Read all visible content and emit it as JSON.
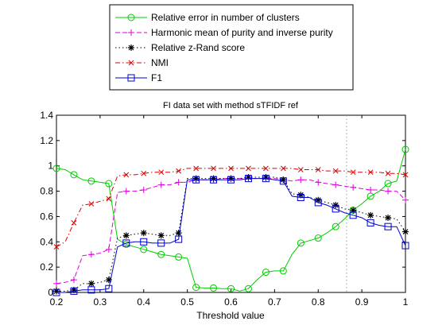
{
  "chart_data": {
    "type": "line",
    "title": "FI data set with method sTFIDF ref",
    "xlabel": "Threshold value",
    "ylabel": "",
    "xlim": [
      0.2,
      1.0
    ],
    "ylim": [
      0,
      1.4
    ],
    "xticks": [
      "0.2",
      "0.3",
      "0.4",
      "0.5",
      "0.6",
      "0.7",
      "0.8",
      "0.9",
      "1"
    ],
    "yticks": [
      "0",
      "0.2",
      "0.4",
      "0.6",
      "0.8",
      "1",
      "1.2",
      "1.4"
    ],
    "grid": false,
    "legend_position": "top-outside",
    "vline": {
      "x": 0.865,
      "style": "dotted",
      "color": "#999999"
    },
    "x": [
      0.2,
      0.22,
      0.24,
      0.26,
      0.28,
      0.3,
      0.32,
      0.34,
      0.36,
      0.38,
      0.4,
      0.42,
      0.44,
      0.46,
      0.48,
      0.5,
      0.52,
      0.54,
      0.56,
      0.58,
      0.6,
      0.62,
      0.64,
      0.66,
      0.68,
      0.7,
      0.72,
      0.74,
      0.76,
      0.78,
      0.8,
      0.82,
      0.84,
      0.86,
      0.88,
      0.9,
      0.92,
      0.94,
      0.96,
      0.98,
      1.0
    ],
    "series": [
      {
        "name": "Relative error in number of clusters",
        "color": "#00cc00",
        "line_style": "solid",
        "marker": "circle",
        "values": [
          0.98,
          0.97,
          0.93,
          0.89,
          0.88,
          0.87,
          0.86,
          0.42,
          0.38,
          0.36,
          0.34,
          0.32,
          0.3,
          0.29,
          0.28,
          0.27,
          0.04,
          0.035,
          0.035,
          0.03,
          0.03,
          0.01,
          0.03,
          0.1,
          0.16,
          0.17,
          0.17,
          0.3,
          0.39,
          0.41,
          0.43,
          0.47,
          0.52,
          0.58,
          0.65,
          0.7,
          0.76,
          0.8,
          0.86,
          0.88,
          1.13
        ]
      },
      {
        "name": "Harmonic mean of purity and inverse purity",
        "color": "#dd00dd",
        "line_style": "dashed",
        "marker": "plus",
        "values": [
          0.07,
          0.08,
          0.1,
          0.29,
          0.3,
          0.31,
          0.34,
          0.79,
          0.8,
          0.8,
          0.81,
          0.83,
          0.85,
          0.85,
          0.87,
          0.87,
          0.89,
          0.89,
          0.89,
          0.9,
          0.9,
          0.9,
          0.9,
          0.9,
          0.9,
          0.9,
          0.89,
          0.88,
          0.89,
          0.89,
          0.87,
          0.86,
          0.85,
          0.84,
          0.83,
          0.82,
          0.81,
          0.81,
          0.8,
          0.8,
          0.73
        ]
      },
      {
        "name": "Relative z-Rand score",
        "color": "#000000",
        "line_style": "dotted",
        "marker": "star",
        "values": [
          0.01,
          0.01,
          0.02,
          0.07,
          0.07,
          0.08,
          0.1,
          0.43,
          0.45,
          0.46,
          0.47,
          0.46,
          0.45,
          0.45,
          0.47,
          0.9,
          0.9,
          0.9,
          0.9,
          0.9,
          0.9,
          0.9,
          0.91,
          0.91,
          0.91,
          0.91,
          0.89,
          0.78,
          0.77,
          0.75,
          0.73,
          0.71,
          0.69,
          0.66,
          0.65,
          0.63,
          0.61,
          0.6,
          0.59,
          0.58,
          0.48
        ]
      },
      {
        "name": "NMI",
        "color": "#dd0000",
        "line_style": "dashdot",
        "marker": "x",
        "values": [
          0.36,
          0.4,
          0.55,
          0.69,
          0.7,
          0.72,
          0.74,
          0.92,
          0.93,
          0.93,
          0.94,
          0.95,
          0.95,
          0.95,
          0.96,
          0.98,
          0.98,
          0.98,
          0.98,
          0.98,
          0.98,
          0.98,
          0.98,
          0.98,
          0.98,
          0.98,
          0.98,
          0.98,
          0.97,
          0.97,
          0.97,
          0.96,
          0.96,
          0.96,
          0.95,
          0.95,
          0.95,
          0.95,
          0.94,
          0.94,
          0.93
        ]
      },
      {
        "name": "F1",
        "color": "#0000cc",
        "line_style": "solid",
        "marker": "square",
        "values": [
          0.0,
          0.0,
          0.01,
          0.02,
          0.02,
          0.02,
          0.03,
          0.36,
          0.39,
          0.4,
          0.4,
          0.39,
          0.39,
          0.39,
          0.42,
          0.89,
          0.89,
          0.89,
          0.89,
          0.89,
          0.89,
          0.89,
          0.9,
          0.9,
          0.9,
          0.89,
          0.88,
          0.76,
          0.75,
          0.75,
          0.71,
          0.69,
          0.66,
          0.63,
          0.61,
          0.59,
          0.55,
          0.53,
          0.52,
          0.52,
          0.37
        ]
      }
    ]
  }
}
